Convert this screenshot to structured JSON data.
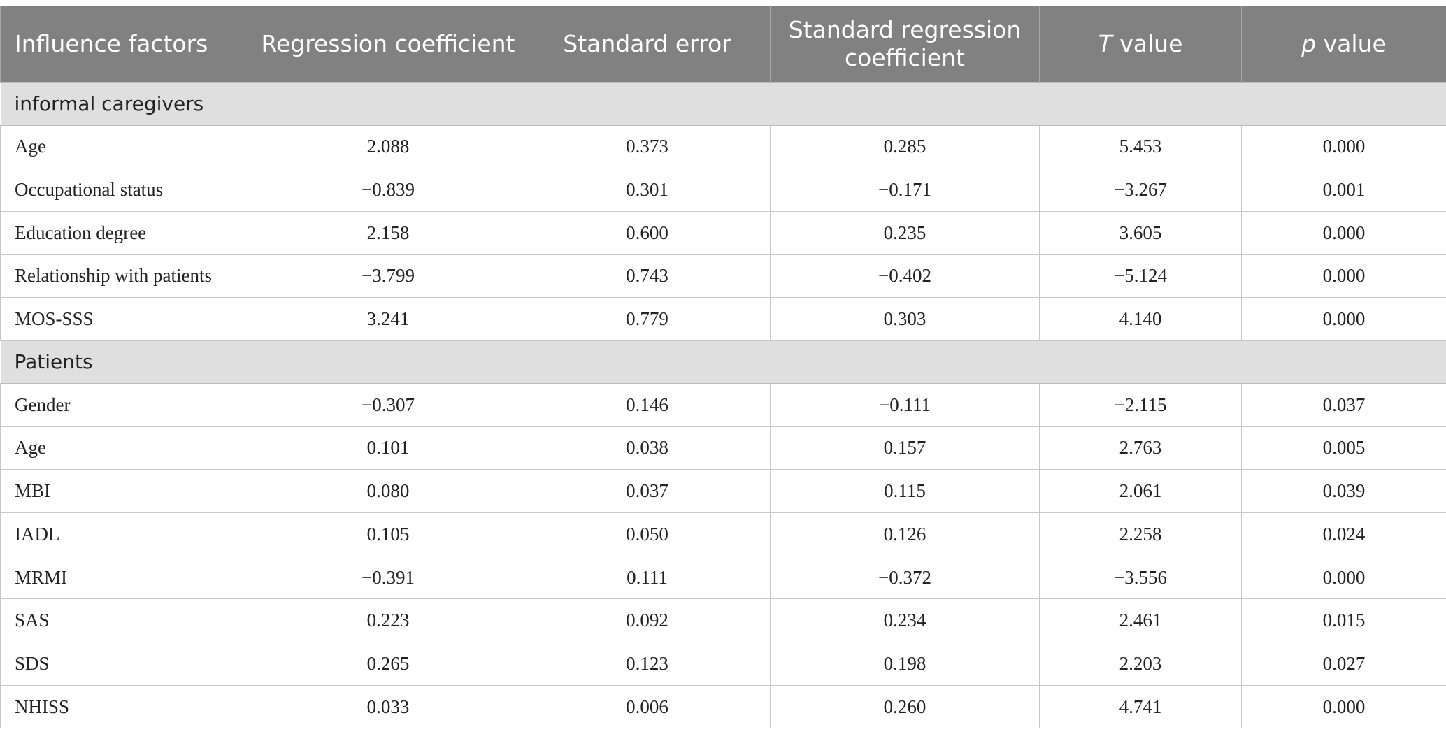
{
  "headers": {
    "factor": "Influence factors",
    "coef": "Regression coefficient",
    "se": "Standard error",
    "std_coef": "Standard regression coefficient",
    "t_italic": "T",
    "t_rest": " value",
    "p_italic": "p",
    "p_rest": " value"
  },
  "sections": [
    {
      "title": "informal caregivers",
      "rows": [
        {
          "factor": "Age",
          "coef": "2.088",
          "se": "0.373",
          "std_coef": "0.285",
          "t": "5.453",
          "p": "0.000"
        },
        {
          "factor": "Occupational status",
          "coef": "−0.839",
          "se": "0.301",
          "std_coef": "−0.171",
          "t": "−3.267",
          "p": "0.001"
        },
        {
          "factor": "Education degree",
          "coef": "2.158",
          "se": "0.600",
          "std_coef": "0.235",
          "t": "3.605",
          "p": "0.000"
        },
        {
          "factor": "Relationship with patients",
          "coef": "−3.799",
          "se": "0.743",
          "std_coef": "−0.402",
          "t": "−5.124",
          "p": "0.000"
        },
        {
          "factor": "MOS-SSS",
          "coef": "3.241",
          "se": "0.779",
          "std_coef": "0.303",
          "t": "4.140",
          "p": "0.000"
        }
      ]
    },
    {
      "title": "Patients",
      "rows": [
        {
          "factor": "Gender",
          "coef": "−0.307",
          "se": "0.146",
          "std_coef": "−0.111",
          "t": "−2.115",
          "p": "0.037"
        },
        {
          "factor": "Age",
          "coef": "0.101",
          "se": "0.038",
          "std_coef": "0.157",
          "t": "2.763",
          "p": "0.005"
        },
        {
          "factor": "MBI",
          "coef": "0.080",
          "se": "0.037",
          "std_coef": "0.115",
          "t": "2.061",
          "p": "0.039"
        },
        {
          "factor": "IADL",
          "coef": "0.105",
          "se": "0.050",
          "std_coef": "0.126",
          "t": "2.258",
          "p": "0.024"
        },
        {
          "factor": "MRMI",
          "coef": "−0.391",
          "se": "0.111",
          "std_coef": "−0.372",
          "t": "−3.556",
          "p": "0.000"
        },
        {
          "factor": "SAS",
          "coef": "0.223",
          "se": "0.092",
          "std_coef": "0.234",
          "t": "2.461",
          "p": "0.015"
        },
        {
          "factor": "SDS",
          "coef": "0.265",
          "se": "0.123",
          "std_coef": "0.198",
          "t": "2.203",
          "p": "0.027"
        },
        {
          "factor": "NHISS",
          "coef": "0.033",
          "se": "0.006",
          "std_coef": "0.260",
          "t": "4.741",
          "p": "0.000"
        }
      ]
    }
  ]
}
